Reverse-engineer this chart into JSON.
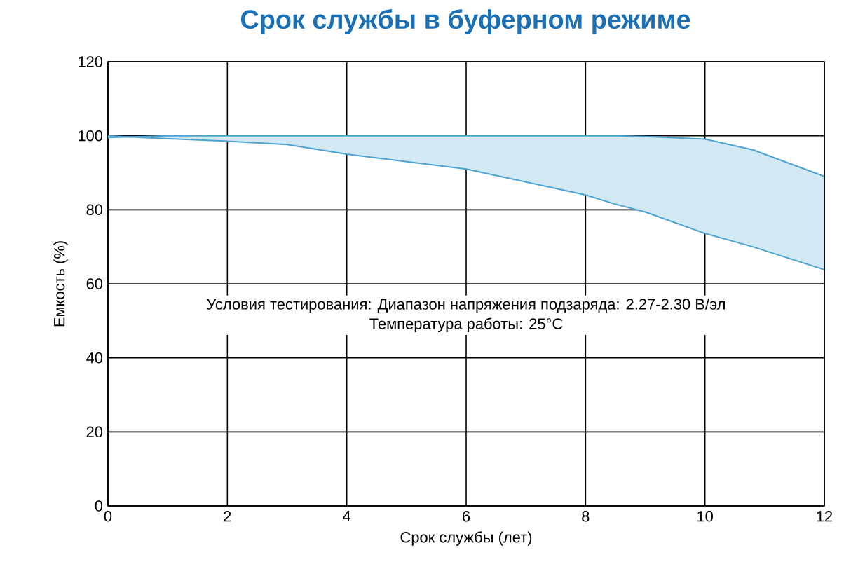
{
  "chart_data": {
    "type": "line",
    "title": "Срок службы в буферном режиме",
    "xlabel": "Срок службы (лет)",
    "ylabel": "Емкость (%)",
    "xlim": [
      0,
      12
    ],
    "ylim": [
      0,
      120
    ],
    "xticks": [
      0,
      2,
      4,
      6,
      8,
      10,
      12
    ],
    "yticks": [
      0,
      20,
      40,
      60,
      80,
      100,
      120
    ],
    "grid": true,
    "x": [
      0,
      1,
      2,
      3,
      4,
      6,
      8,
      8.5,
      9,
      10,
      10.8,
      12
    ],
    "series": [
      {
        "color": "#4aa3d0",
        "values": [
          99.5,
          100,
          100,
          100,
          100,
          100,
          100,
          100,
          99.8,
          99.1,
          96.2,
          89
        ],
        "upper": [
          99.5,
          100,
          100,
          100,
          100,
          100,
          100,
          100,
          99.8,
          99.1,
          96.2,
          89
        ],
        "lower": [
          100,
          99.2,
          98.5,
          97.6,
          95,
          91,
          84,
          81.5,
          79.4,
          73.6,
          70,
          63.8
        ]
      },
      {
        "color": "#4aa3d0",
        "values": [
          100,
          99.2,
          98.5,
          97.6,
          95,
          91,
          84,
          81.5,
          79.4,
          73.6,
          70,
          63.8
        ]
      }
    ],
    "annotations": [
      "Условия тестирования: Диапазон напряжения подзаряда: 2.27-2.30 В/эл",
      "Температура работы: 25°C"
    ]
  }
}
